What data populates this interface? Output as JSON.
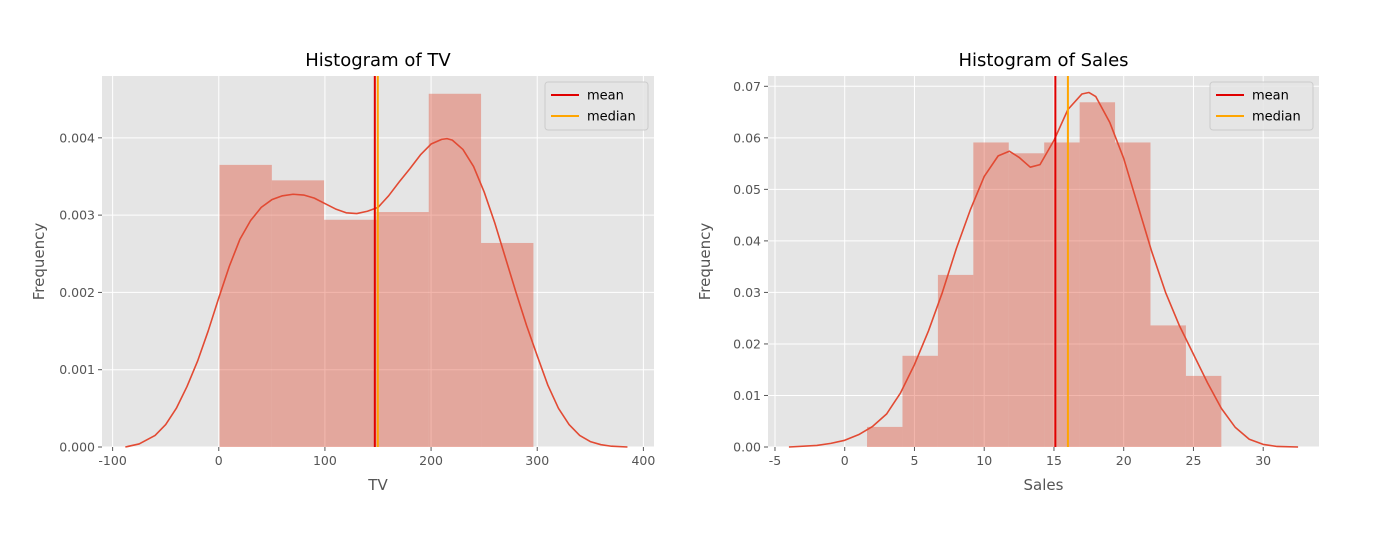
{
  "colors": {
    "panel_bg": "#E5E5E5",
    "grid": "#FFFFFF",
    "bar_fill": "#E24A33",
    "kde": "#E24A33",
    "mean": "#E00000",
    "median": "#FFA500",
    "tick_text": "#555555"
  },
  "chart_data": [
    {
      "type": "histogram",
      "title": "Histogram of TV",
      "xlabel": "TV",
      "ylabel": "Frequency",
      "xlim": [
        -110,
        410
      ],
      "ylim": [
        0,
        0.0048
      ],
      "xticks": [
        -100,
        0,
        100,
        200,
        300,
        400
      ],
      "yticks": [
        0,
        0.001,
        0.002,
        0.003,
        0.004
      ],
      "ytick_labels": [
        "0.000",
        "0.001",
        "0.002",
        "0.003",
        "0.004"
      ],
      "grid": true,
      "legend_position": "top-right",
      "bins": [
        {
          "x0": 0.7,
          "x1": 50.0,
          "height": 0.00365
        },
        {
          "x0": 50.0,
          "x1": 99.2,
          "height": 0.00345
        },
        {
          "x0": 99.2,
          "x1": 148.5,
          "height": 0.00294
        },
        {
          "x0": 148.5,
          "x1": 197.8,
          "height": 0.00304
        },
        {
          "x0": 197.8,
          "x1": 247.1,
          "height": 0.00457
        },
        {
          "x0": 247.1,
          "x1": 296.4,
          "height": 0.00264
        }
      ],
      "kde": {
        "x": [
          -88,
          -75,
          -60,
          -50,
          -40,
          -30,
          -20,
          -10,
          0,
          10,
          20,
          30,
          40,
          50,
          60,
          70,
          80,
          90,
          100,
          110,
          120,
          130,
          140,
          150,
          160,
          170,
          180,
          190,
          200,
          210,
          215,
          220,
          230,
          240,
          250,
          260,
          270,
          280,
          290,
          300,
          310,
          320,
          330,
          340,
          350,
          360,
          370,
          385
        ],
        "y": [
          0.0,
          4e-05,
          0.00015,
          0.00029,
          0.0005,
          0.00078,
          0.00111,
          0.0015,
          0.00193,
          0.00234,
          0.00269,
          0.00293,
          0.0031,
          0.0032,
          0.00325,
          0.00327,
          0.00326,
          0.00322,
          0.00315,
          0.00308,
          0.00303,
          0.00302,
          0.00305,
          0.0031,
          0.00325,
          0.00343,
          0.0036,
          0.00378,
          0.00392,
          0.00398,
          0.00399,
          0.00397,
          0.00385,
          0.00363,
          0.0033,
          0.0029,
          0.00245,
          0.002,
          0.00157,
          0.00118,
          0.0008,
          0.0005,
          0.00029,
          0.00015,
          7e-05,
          3e-05,
          1e-05,
          0.0
        ]
      },
      "lines": [
        {
          "name": "mean",
          "x": 147.0
        },
        {
          "name": "median",
          "x": 149.8
        }
      ],
      "legend": [
        "mean",
        "median"
      ]
    },
    {
      "type": "histogram",
      "title": "Histogram of Sales",
      "xlabel": "Sales",
      "ylabel": "Frequency",
      "xlim": [
        -5.5,
        34
      ],
      "ylim": [
        0,
        0.072
      ],
      "xticks": [
        -5,
        0,
        5,
        10,
        15,
        20,
        25,
        30
      ],
      "yticks": [
        0,
        0.01,
        0.02,
        0.03,
        0.04,
        0.05,
        0.06,
        0.07
      ],
      "ytick_labels": [
        "0.00",
        "0.01",
        "0.02",
        "0.03",
        "0.04",
        "0.05",
        "0.06",
        "0.07"
      ],
      "grid": true,
      "legend_position": "top-right",
      "bins": [
        {
          "x0": 1.6,
          "x1": 4.14,
          "height": 0.0039
        },
        {
          "x0": 4.14,
          "x1": 6.68,
          "height": 0.0177
        },
        {
          "x0": 6.68,
          "x1": 9.22,
          "height": 0.0334
        },
        {
          "x0": 9.22,
          "x1": 11.76,
          "height": 0.0591
        },
        {
          "x0": 11.76,
          "x1": 14.3,
          "height": 0.057
        },
        {
          "x0": 14.3,
          "x1": 16.84,
          "height": 0.0591
        },
        {
          "x0": 16.84,
          "x1": 19.38,
          "height": 0.0669
        },
        {
          "x0": 19.38,
          "x1": 21.92,
          "height": 0.0591
        },
        {
          "x0": 21.92,
          "x1": 24.46,
          "height": 0.0236
        },
        {
          "x0": 24.46,
          "x1": 27.0,
          "height": 0.0138
        }
      ],
      "kde": {
        "x": [
          -4,
          -2,
          -1,
          0,
          1,
          2,
          3,
          4,
          5,
          6,
          7,
          8,
          9,
          10,
          11,
          11.8,
          12.5,
          13.3,
          14,
          15,
          16,
          17,
          17.5,
          18,
          19,
          20,
          21,
          22,
          23,
          24,
          25,
          26,
          27,
          28,
          29,
          30,
          31,
          32.5
        ],
        "y": [
          0,
          0.0003,
          0.0007,
          0.0013,
          0.0024,
          0.004,
          0.0064,
          0.0105,
          0.016,
          0.0225,
          0.03,
          0.0385,
          0.046,
          0.0525,
          0.0565,
          0.0574,
          0.0562,
          0.0543,
          0.0548,
          0.0595,
          0.0655,
          0.0685,
          0.0688,
          0.068,
          0.063,
          0.056,
          0.047,
          0.038,
          0.03,
          0.0235,
          0.018,
          0.0125,
          0.0075,
          0.0038,
          0.0015,
          0.0005,
          0.0001,
          0
        ]
      },
      "lines": [
        {
          "name": "mean",
          "x": 15.1
        },
        {
          "name": "median",
          "x": 16.0
        }
      ],
      "legend": [
        "mean",
        "median"
      ]
    }
  ]
}
